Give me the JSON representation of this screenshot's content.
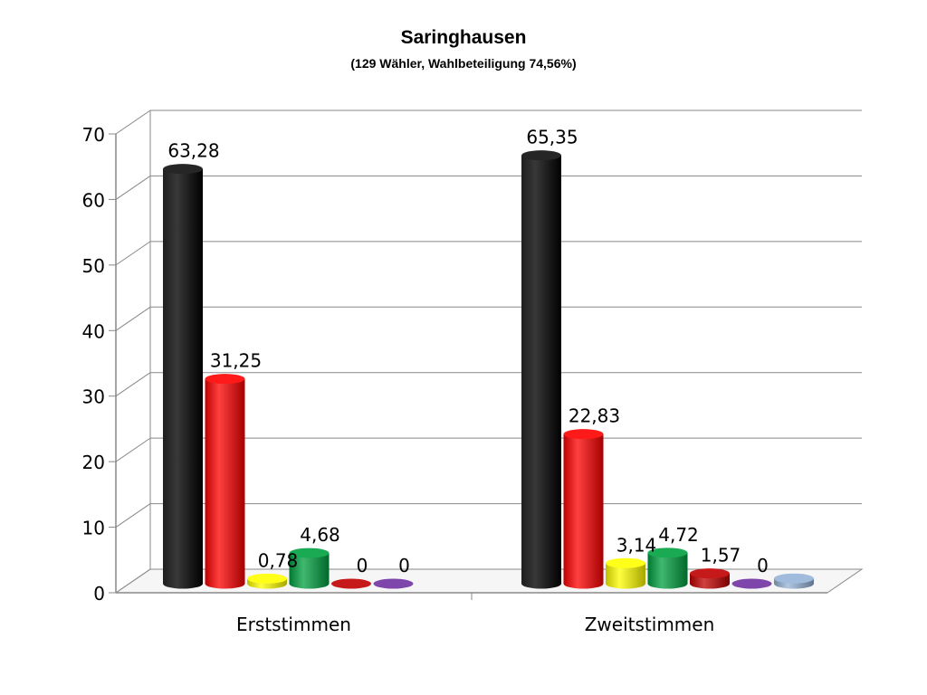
{
  "chart_data": {
    "type": "bar",
    "title": "Saringhausen",
    "subtitle": "(129 Wähler, Wahlbeteiligung 74,56%)",
    "categories": [
      "Erststimmen",
      "Zweitstimmen"
    ],
    "ylim": [
      0,
      70
    ],
    "yticks": [
      "0",
      "10",
      "20",
      "30",
      "40",
      "50",
      "60",
      "70"
    ],
    "grid": true,
    "bar_groups": [
      {
        "category": "Erststimmen",
        "bars": [
          {
            "value": 63.28,
            "label": "63,28",
            "color": "#000000"
          },
          {
            "value": 31.25,
            "label": "31,25",
            "color": "#ff0000"
          },
          {
            "value": 0.78,
            "label": "0,78",
            "color": "#ffff00"
          },
          {
            "value": 4.68,
            "label": "4,68",
            "color": "#00a040"
          },
          {
            "value": 0,
            "label": "0",
            "color": "#c00000"
          },
          {
            "value": 0,
            "label": "0",
            "color": "#7030a0"
          }
        ]
      },
      {
        "category": "Zweitstimmen",
        "bars": [
          {
            "value": 65.35,
            "label": "65,35",
            "color": "#000000"
          },
          {
            "value": 22.83,
            "label": "22,83",
            "color": "#ff0000"
          },
          {
            "value": 3.14,
            "label": "3,14",
            "color": "#ffff00"
          },
          {
            "value": 4.72,
            "label": "4,72",
            "color": "#00a040"
          },
          {
            "value": 1.57,
            "label": "1,57",
            "color": "#c00000"
          },
          {
            "value": 0,
            "label": "0",
            "color": "#7030a0"
          },
          {
            "value": 0.8,
            "label": "",
            "color": "#95b3d7"
          }
        ]
      }
    ]
  }
}
